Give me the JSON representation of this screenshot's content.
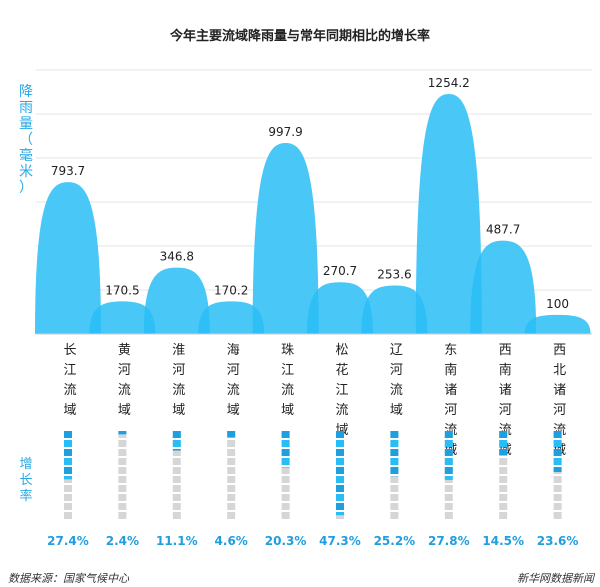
{
  "chart_data": {
    "type": "bar",
    "title": "今年主要流域降雨量与常年同期相比的增长率",
    "ylabel": "降雨量（毫米）",
    "growth_label": "增长率",
    "categories": [
      "长江流域",
      "黄河流域",
      "淮河流域",
      "海河流域",
      "珠江流域",
      "松花江流域",
      "辽河流域",
      "东南诸河流域",
      "西南诸河流域",
      "西北诸河流域"
    ],
    "values": [
      793.7,
      170.5,
      346.8,
      170.2,
      997.9,
      270.7,
      253.6,
      1254.2,
      487.7,
      100
    ],
    "value_labels": [
      "793.7",
      "170.5",
      "346.8",
      "170.2",
      "997.9",
      "270.7",
      "253.6",
      "1254.2",
      "487.7",
      "100"
    ],
    "growth_rates": [
      27.4,
      2.4,
      11.1,
      4.6,
      20.3,
      47.3,
      25.2,
      27.8,
      14.5,
      23.6
    ],
    "growth_labels": [
      "27.4%",
      "2.4%",
      "11.1%",
      "4.6%",
      "20.3%",
      "47.3%",
      "25.2%",
      "27.8%",
      "14.5%",
      "23.6%"
    ],
    "grid": true,
    "colors": {
      "primary": "#29bdf6",
      "dark": "#1f9ee0",
      "light": "#7dd8fb",
      "gray": "#d6d6d6"
    }
  },
  "footer": {
    "source": "数据来源：国家气候中心",
    "credit": "新华网数据新闻"
  }
}
